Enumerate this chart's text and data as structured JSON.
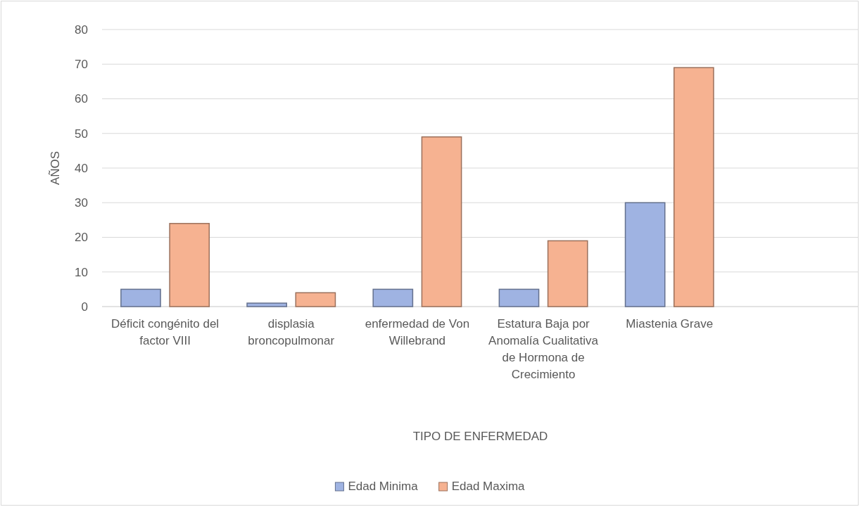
{
  "chart_data": {
    "type": "bar",
    "xlabel": "TIPO DE ENFERMEDAD",
    "ylabel": "AÑOS",
    "categories": [
      "Déficit congénito del factor VIII",
      "displasia broncopulmonar",
      "enfermedad de Von Willebrand",
      "Estatura Baja por Anomalía Cualitativa de Hormona de Crecimiento",
      "Miastenia Grave",
      null
    ],
    "series": [
      {
        "name": "Edad Minima",
        "color": "#9fb3e2",
        "values": [
          5,
          1,
          5,
          5,
          30,
          null
        ]
      },
      {
        "name": "Edad Maxima",
        "color": "#f6b291",
        "values": [
          24,
          4,
          49,
          19,
          69,
          null
        ]
      }
    ],
    "ylim": [
      0,
      80
    ],
    "yticks": [
      0,
      10,
      20,
      30,
      40,
      50,
      60,
      70,
      80
    ],
    "grid": "y",
    "legend": "bottom"
  }
}
